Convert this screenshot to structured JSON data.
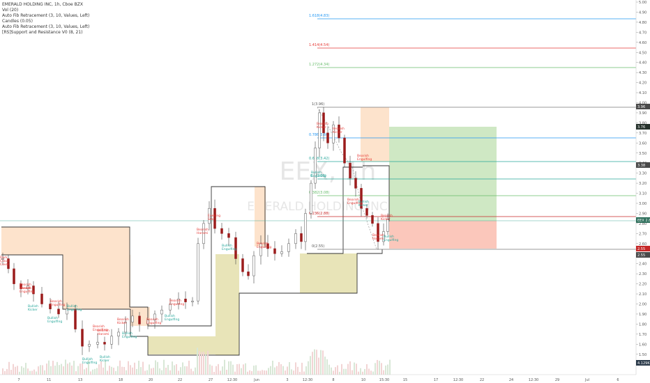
{
  "legend": {
    "symbol": "EMERALD HOLDING INC, 1h, Cboe BZX",
    "indicators": [
      "Vol (20)",
      "Auto Fib Retracement (3, 10, Values, Left)",
      "Candles (0.05)",
      "Auto Fib Retracement (3, 10, Values, Left)",
      "[RS]Support and Resistance V0 (8, 21)"
    ]
  },
  "watermark": {
    "ticker": "EEX, 1h",
    "name": "EMERALD HOLDING INC"
  },
  "price_axis": {
    "ticks": [
      "5.00",
      "4.90",
      "4.80",
      "4.70",
      "4.60",
      "4.50",
      "4.40",
      "4.30",
      "4.20",
      "4.10",
      "4.00",
      "3.90",
      "3.80",
      "3.70",
      "3.60",
      "3.50",
      "3.40",
      "3.30",
      "3.20",
      "3.10",
      "3.00",
      "2.90",
      "2.80",
      "2.70",
      "2.60",
      "2.50",
      "2.40",
      "2.30",
      "2.20",
      "2.10",
      "2.00",
      "1.90",
      "1.80",
      "1.70",
      "1.60",
      "1.50",
      "1.40"
    ],
    "badges": [
      {
        "text": "3.96",
        "color": "#4a4a4a"
      },
      {
        "text": "3.76",
        "color": "#26322c"
      },
      {
        "text": "3.38",
        "color": "#4a4a4a"
      },
      {
        "text": "EEX 2.84",
        "color": "#2c6e5a"
      },
      {
        "text": "2.55",
        "color": "#c62828"
      },
      {
        "text": "2.55",
        "color": "#4a4a4a"
      },
      {
        "text": "4.129K",
        "color": "#2b3a4a"
      }
    ]
  },
  "time_axis": {
    "labels": [
      "7",
      "11",
      "13",
      "18",
      "20",
      "22",
      "27",
      "12:30",
      "Jun",
      "3",
      "12:30",
      "8",
      "10",
      "15:30",
      "15",
      "17",
      "12:30",
      "22",
      "24",
      "12:30",
      "29",
      "Jul",
      "6"
    ]
  },
  "fib_levels": [
    {
      "text": "1.618(4.83)",
      "color": "#2196f3"
    },
    {
      "text": "1.414(4.54)",
      "color": "#e53935"
    },
    {
      "text": "1.272(4.34)",
      "color": "#66bb6a"
    },
    {
      "text": "1(3.96)",
      "color": "#555555"
    },
    {
      "text": "0.786(3.66)",
      "color": "#2196f3"
    },
    {
      "text": "0.618(3.42)",
      "color": "#26a69a"
    },
    {
      "text": "0.5(3.25)",
      "color": "#26a69a"
    },
    {
      "text": "0.382(3.08)",
      "color": "#66bb6a"
    },
    {
      "text": "0.236(2.88)",
      "color": "#c62828"
    },
    {
      "text": "0(2.55)",
      "color": "#555555"
    }
  ],
  "patterns": [
    {
      "text": "Dark Cloud Cover",
      "color": "#e53935"
    },
    {
      "text": "Bearish Harami",
      "color": "#e53935"
    },
    {
      "text": "Bearish Engulfing",
      "color": "#e53935"
    },
    {
      "text": "Bullish Kicker",
      "color": "#26a69a"
    },
    {
      "text": "Bearish Engulfing",
      "color": "#e53935"
    },
    {
      "text": "Bullish Engulfing",
      "color": "#26a69a"
    },
    {
      "text": "Bullish Engulfing",
      "color": "#26a69a"
    },
    {
      "text": "Bearish Engulfing",
      "color": "#e53935"
    },
    {
      "text": "Bearish Harami",
      "color": "#e53935"
    },
    {
      "text": "Bullish Engulfing",
      "color": "#26a69a"
    },
    {
      "text": "Bullish Kicker",
      "color": "#26a69a"
    },
    {
      "text": "Bearish Kicker",
      "color": "#e53935"
    },
    {
      "text": "Bullish Engulfing",
      "color": "#26a69a"
    },
    {
      "text": "Bearish Engulfing",
      "color": "#e53935"
    },
    {
      "text": "Bullish Engulfing",
      "color": "#26a69a"
    },
    {
      "text": "Bearish Engulfing",
      "color": "#e53935"
    },
    {
      "text": "Evening Star",
      "color": "#e53935"
    },
    {
      "text": "Bearish Harami",
      "color": "#e53935"
    },
    {
      "text": "Bullish Engulfing",
      "color": "#26a69a"
    },
    {
      "text": "Bearish Engulfing",
      "color": "#e53935"
    },
    {
      "text": "Bearish Kicker",
      "color": "#e53935"
    },
    {
      "text": "Bearish Kicker",
      "color": "#e53935"
    },
    {
      "text": "Bullish Engulfing",
      "color": "#26a69a"
    },
    {
      "text": "Bearish Engulfing",
      "color": "#e53935"
    },
    {
      "text": "Bearish Engulfing",
      "color": "#e53935"
    },
    {
      "text": "Bullish Kicker",
      "color": "#26a69a"
    },
    {
      "text": "Bearish Harami",
      "color": "#e53935"
    },
    {
      "text": "Bearish Kicker",
      "color": "#e53935"
    },
    {
      "text": "Bullish Engulfing",
      "color": "#26a69a"
    }
  ]
}
